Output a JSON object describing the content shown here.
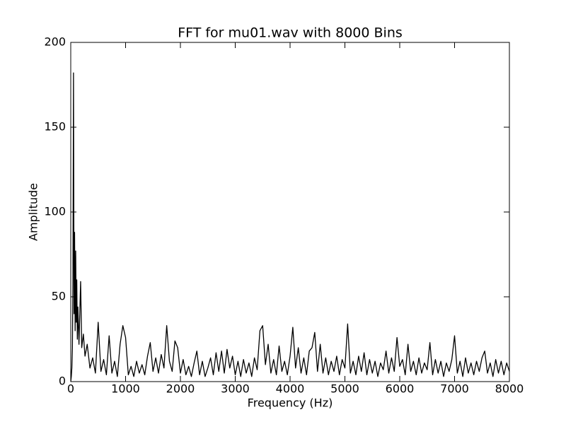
{
  "chart_data": {
    "type": "line",
    "title": "FFT for mu01.wav with 8000 Bins",
    "x_label": "Frequency (Hz)",
    "y_label": "Amplitude",
    "xlim": [
      0,
      8000
    ],
    "ylim": [
      0,
      200
    ],
    "xticks": [
      0,
      1000,
      2000,
      3000,
      4000,
      5000,
      6000,
      7000,
      8000
    ],
    "yticks": [
      0,
      50,
      100,
      150,
      200
    ],
    "grid": false,
    "series": [
      {
        "color": "#000000",
        "x": [
          0,
          10,
          20,
          30,
          40,
          50,
          60,
          70,
          80,
          90,
          100,
          110,
          120,
          130,
          150,
          180,
          200,
          230,
          260,
          300,
          350,
          400,
          450,
          500,
          550,
          600,
          650,
          700,
          750,
          800,
          850,
          900,
          950,
          1000,
          1050,
          1100,
          1150,
          1200,
          1250,
          1300,
          1350,
          1400,
          1450,
          1500,
          1550,
          1600,
          1650,
          1700,
          1750,
          1800,
          1850,
          1900,
          1950,
          2000,
          2050,
          2100,
          2150,
          2200,
          2250,
          2300,
          2350,
          2400,
          2450,
          2500,
          2550,
          2600,
          2650,
          2700,
          2750,
          2800,
          2850,
          2900,
          2950,
          3000,
          3050,
          3100,
          3150,
          3200,
          3250,
          3300,
          3350,
          3400,
          3450,
          3500,
          3550,
          3600,
          3650,
          3700,
          3750,
          3800,
          3850,
          3900,
          3950,
          4000,
          4050,
          4100,
          4150,
          4200,
          4250,
          4300,
          4350,
          4400,
          4450,
          4500,
          4550,
          4600,
          4650,
          4700,
          4750,
          4800,
          4850,
          4900,
          4950,
          5000,
          5050,
          5100,
          5150,
          5200,
          5250,
          5300,
          5350,
          5400,
          5450,
          5500,
          5550,
          5600,
          5650,
          5700,
          5750,
          5800,
          5850,
          5900,
          5950,
          6000,
          6050,
          6100,
          6150,
          6200,
          6250,
          6300,
          6350,
          6400,
          6450,
          6500,
          6550,
          6600,
          6650,
          6700,
          6750,
          6800,
          6850,
          6900,
          6950,
          7000,
          7050,
          7100,
          7150,
          7200,
          7250,
          7300,
          7350,
          7400,
          7450,
          7500,
          7550,
          7600,
          7650,
          7700,
          7750,
          7800,
          7850,
          7900,
          7950,
          8000
        ],
        "values": [
          0,
          3,
          8,
          20,
          60,
          182,
          40,
          88,
          30,
          77,
          35,
          60,
          25,
          44,
          22,
          59,
          20,
          28,
          15,
          22,
          8,
          14,
          5,
          35,
          6,
          13,
          4,
          27,
          5,
          12,
          3,
          22,
          33,
          26,
          4,
          9,
          3,
          12,
          5,
          10,
          4,
          15,
          23,
          6,
          14,
          5,
          16,
          8,
          33,
          12,
          6,
          24,
          20,
          5,
          13,
          4,
          9,
          3,
          11,
          18,
          4,
          12,
          3,
          8,
          14,
          4,
          17,
          6,
          18,
          5,
          19,
          8,
          15,
          4,
          12,
          3,
          13,
          5,
          11,
          3,
          14,
          7,
          30,
          33,
          10,
          22,
          5,
          13,
          4,
          21,
          6,
          12,
          4,
          15,
          32,
          8,
          20,
          5,
          14,
          4,
          18,
          20,
          29,
          6,
          22,
          5,
          14,
          4,
          12,
          6,
          15,
          4,
          13,
          8,
          34,
          5,
          12,
          4,
          15,
          6,
          17,
          4,
          13,
          5,
          12,
          3,
          11,
          7,
          18,
          5,
          14,
          6,
          26,
          9,
          13,
          4,
          22,
          6,
          12,
          4,
          14,
          5,
          11,
          7,
          23,
          4,
          13,
          5,
          12,
          3,
          11,
          6,
          13,
          27,
          5,
          12,
          3,
          14,
          5,
          11,
          4,
          12,
          6,
          14,
          18,
          5,
          11,
          3,
          13,
          5,
          12,
          4,
          11,
          6
        ]
      }
    ]
  }
}
